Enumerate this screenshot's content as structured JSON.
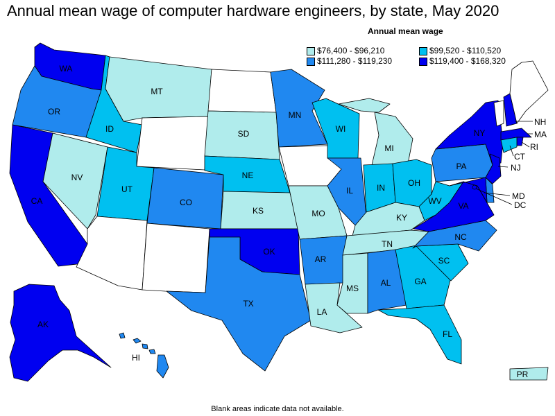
{
  "title": "Annual mean wage of computer hardware engineers, by state, May 2020",
  "legend": {
    "title": "Annual mean wage",
    "items": [
      {
        "key": "c1",
        "label": "$76,400 - $96,210",
        "color": "#b0ecec"
      },
      {
        "key": "c2",
        "label": "$99,520 - $110,520",
        "color": "#00c0f0"
      },
      {
        "key": "c3",
        "label": "$111,280 - $119,230",
        "color": "#2088f0"
      },
      {
        "key": "c4",
        "label": "$119,400 - $168,320",
        "color": "#0000f0"
      }
    ],
    "na_color": "#ffffff"
  },
  "footnote": "Blank areas indicate data not available.",
  "states": {
    "WA": {
      "label": "WA",
      "class": "c4"
    },
    "OR": {
      "label": "OR",
      "class": "c3"
    },
    "CA": {
      "label": "CA",
      "class": "c4"
    },
    "NV": {
      "label": "NV",
      "class": "c1"
    },
    "ID": {
      "label": "ID",
      "class": "c2"
    },
    "MT": {
      "label": "MT",
      "class": "c1"
    },
    "WY": {
      "label": "",
      "class": "na"
    },
    "UT": {
      "label": "UT",
      "class": "c2"
    },
    "AZ": {
      "label": "",
      "class": "na"
    },
    "CO": {
      "label": "CO",
      "class": "c3"
    },
    "NM": {
      "label": "",
      "class": "na"
    },
    "ND": {
      "label": "",
      "class": "na"
    },
    "SD": {
      "label": "SD",
      "class": "c1"
    },
    "NE": {
      "label": "NE",
      "class": "c2"
    },
    "KS": {
      "label": "KS",
      "class": "c1"
    },
    "OK": {
      "label": "OK",
      "class": "c4"
    },
    "TX": {
      "label": "TX",
      "class": "c3"
    },
    "MN": {
      "label": "MN",
      "class": "c3"
    },
    "IA": {
      "label": "",
      "class": "na"
    },
    "MO": {
      "label": "MO",
      "class": "c1"
    },
    "AR": {
      "label": "AR",
      "class": "c3"
    },
    "LA": {
      "label": "LA",
      "class": "c1"
    },
    "WI": {
      "label": "WI",
      "class": "c2"
    },
    "IL": {
      "label": "IL",
      "class": "c3"
    },
    "MI": {
      "label": "MI",
      "class": "c1"
    },
    "IN": {
      "label": "IN",
      "class": "c2"
    },
    "OH": {
      "label": "OH",
      "class": "c2"
    },
    "KY": {
      "label": "KY",
      "class": "c1"
    },
    "TN": {
      "label": "TN",
      "class": "c1"
    },
    "MS": {
      "label": "MS",
      "class": "c1"
    },
    "AL": {
      "label": "AL",
      "class": "c3"
    },
    "GA": {
      "label": "GA",
      "class": "c2"
    },
    "FL": {
      "label": "FL",
      "class": "c2"
    },
    "SC": {
      "label": "SC",
      "class": "c2"
    },
    "NC": {
      "label": "NC",
      "class": "c3"
    },
    "VA": {
      "label": "VA",
      "class": "c4"
    },
    "WV": {
      "label": "WV",
      "class": "c2"
    },
    "PA": {
      "label": "PA",
      "class": "c3"
    },
    "NY": {
      "label": "NY",
      "class": "c4"
    },
    "VT": {
      "label": "",
      "class": "na"
    },
    "NH": {
      "label": "NH",
      "class": "c4"
    },
    "ME": {
      "label": "",
      "class": "na"
    },
    "MA": {
      "label": "MA",
      "class": "c4"
    },
    "RI": {
      "label": "RI",
      "class": "c4"
    },
    "CT": {
      "label": "CT",
      "class": "c2"
    },
    "NJ": {
      "label": "NJ",
      "class": "c4"
    },
    "DE": {
      "label": "",
      "class": "c3"
    },
    "MD": {
      "label": "MD",
      "class": "c4"
    },
    "DC": {
      "label": "DC",
      "class": "c4"
    },
    "AK": {
      "label": "AK",
      "class": "c4"
    },
    "HI": {
      "label": "HI",
      "class": "c3"
    },
    "PR": {
      "label": "PR",
      "class": "c1"
    }
  }
}
